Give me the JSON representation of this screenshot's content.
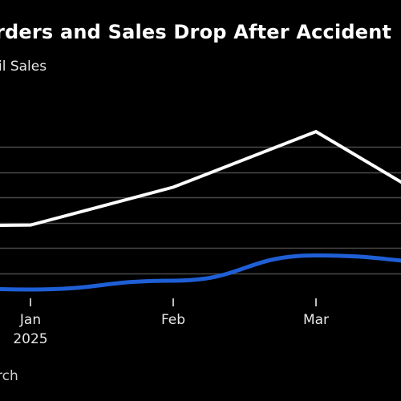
{
  "header": {
    "title": "rders and Sales Drop After Accident",
    "legend_label": "il Sales"
  },
  "footer": {
    "source": "rch"
  },
  "chart_data": {
    "type": "line",
    "x": [
      "2024-12",
      "2025-01",
      "2025-02",
      "2025-03",
      "2025-04"
    ],
    "x_tick_labels": [
      {
        "x": "2025-01",
        "lines": [
          "Jan",
          "2025"
        ]
      },
      {
        "x": "2025-02",
        "lines": [
          "Feb"
        ]
      },
      {
        "x": "2025-03",
        "lines": [
          "Mar"
        ]
      }
    ],
    "series": [
      {
        "name": "il Sales",
        "color": "#ffffff",
        "values": [
          57,
          58,
          88,
          132,
          65
        ]
      },
      {
        "color": "#1f5fd6",
        "values": [
          10,
          7,
          14,
          34,
          28
        ]
      }
    ],
    "ylim": [
      0,
      160
    ],
    "grid": true,
    "title": "rders and Sales Drop After Accident",
    "xlabel": "",
    "ylabel": ""
  }
}
